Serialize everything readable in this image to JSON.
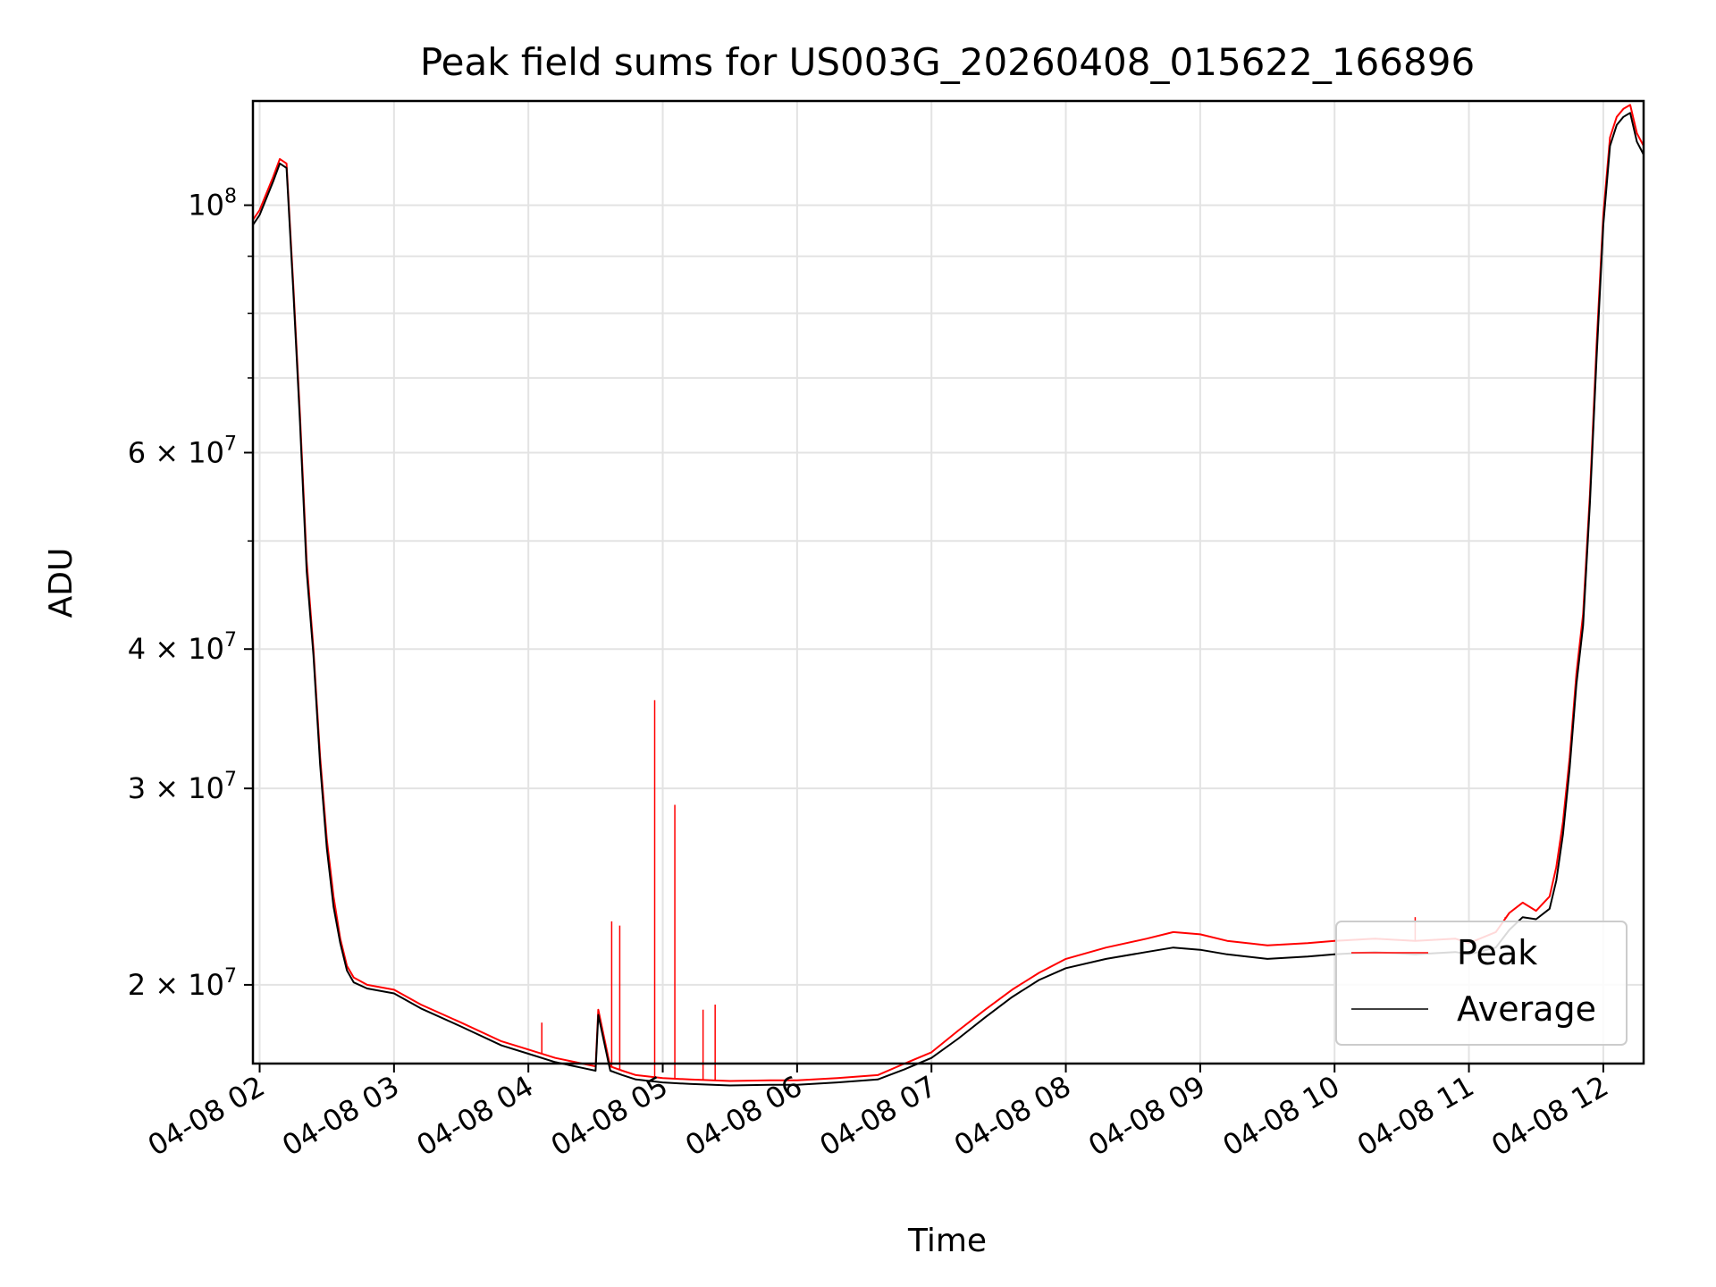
{
  "chart_data": {
    "type": "line",
    "title": "Peak field sums for US003G_20260408_015622_166896",
    "xlabel": "Time",
    "ylabel": "ADU",
    "yscale": "log",
    "grid": true,
    "legend_position": "lower-right",
    "x_range_hours": [
      1.95,
      12.3
    ],
    "ylim": [
      17000000,
      124000000
    ],
    "x_ticks": [
      {
        "hour": 2,
        "label": "04-08 02"
      },
      {
        "hour": 3,
        "label": "04-08 03"
      },
      {
        "hour": 4,
        "label": "04-08 04"
      },
      {
        "hour": 5,
        "label": "04-08 05"
      },
      {
        "hour": 6,
        "label": "04-08 06"
      },
      {
        "hour": 7,
        "label": "04-08 07"
      },
      {
        "hour": 8,
        "label": "04-08 08"
      },
      {
        "hour": 9,
        "label": "04-08 09"
      },
      {
        "hour": 10,
        "label": "04-08 10"
      },
      {
        "hour": 11,
        "label": "04-08 11"
      },
      {
        "hour": 12,
        "label": "04-08 12"
      }
    ],
    "y_ticks": [
      {
        "value": 20000000,
        "mantissa": "2",
        "exponent": "7"
      },
      {
        "value": 30000000,
        "mantissa": "3",
        "exponent": "7"
      },
      {
        "value": 40000000,
        "mantissa": "4",
        "exponent": "7"
      },
      {
        "value": 60000000,
        "mantissa": "6",
        "exponent": "7"
      },
      {
        "value": 100000000,
        "mantissa": "",
        "exponent": "8"
      }
    ],
    "y_minor_ticks": [
      50000000,
      70000000,
      80000000,
      90000000
    ],
    "series": [
      {
        "name": "Peak",
        "color": "#ff0000",
        "x_hours": [
          1.95,
          2.0,
          2.1,
          2.15,
          2.2,
          2.25,
          2.3,
          2.35,
          2.4,
          2.45,
          2.5,
          2.55,
          2.6,
          2.65,
          2.7,
          2.8,
          3.0,
          3.2,
          3.5,
          3.8,
          4.0,
          4.2,
          4.4,
          4.5,
          4.52,
          4.6,
          4.61,
          4.7,
          4.8,
          5.0,
          5.2,
          5.5,
          5.8,
          6.0,
          6.3,
          6.6,
          6.8,
          7.0,
          7.2,
          7.4,
          7.6,
          7.8,
          8.0,
          8.3,
          8.6,
          8.8,
          9.0,
          9.2,
          9.5,
          9.8,
          10.0,
          10.3,
          10.6,
          10.9,
          11.0,
          11.2,
          11.3,
          11.4,
          11.5,
          11.6,
          11.65,
          11.7,
          11.75,
          11.8,
          11.85,
          11.9,
          11.95,
          12.0,
          12.05,
          12.1,
          12.15,
          12.2,
          12.25,
          12.3
        ],
        "values": [
          97000000,
          99000000,
          106000000,
          110000000,
          109000000,
          85000000,
          65000000,
          48000000,
          40000000,
          32000000,
          27000000,
          24000000,
          22000000,
          20800000,
          20300000,
          20000000,
          19800000,
          19200000,
          18500000,
          17800000,
          17500000,
          17200000,
          17000000,
          16900000,
          19000000,
          17100000,
          16900000,
          16750000,
          16600000,
          16500000,
          16450000,
          16400000,
          16420000,
          16420000,
          16500000,
          16600000,
          17000000,
          17400000,
          18200000,
          19000000,
          19800000,
          20500000,
          21100000,
          21600000,
          22000000,
          22300000,
          22200000,
          21900000,
          21700000,
          21800000,
          21900000,
          22000000,
          21900000,
          22000000,
          21800000,
          22300000,
          23200000,
          23700000,
          23300000,
          24000000,
          25500000,
          28000000,
          32000000,
          38000000,
          43000000,
          55000000,
          75000000,
          98000000,
          115000000,
          120000000,
          122000000,
          123000000,
          116000000,
          113000000
        ],
        "spikes": [
          {
            "hour": 4.1,
            "value": 18500000
          },
          {
            "hour": 4.62,
            "value": 22800000
          },
          {
            "hour": 4.68,
            "value": 22600000
          },
          {
            "hour": 4.94,
            "value": 36000000
          },
          {
            "hour": 5.09,
            "value": 29000000
          },
          {
            "hour": 5.3,
            "value": 19000000
          },
          {
            "hour": 5.39,
            "value": 19200000
          },
          {
            "hour": 10.6,
            "value": 23000000
          },
          {
            "hour": 11.27,
            "value": 23000000
          }
        ]
      },
      {
        "name": "Average",
        "color": "#000000",
        "x_hours": [
          1.95,
          2.0,
          2.1,
          2.15,
          2.2,
          2.25,
          2.3,
          2.35,
          2.4,
          2.45,
          2.5,
          2.55,
          2.6,
          2.65,
          2.7,
          2.8,
          3.0,
          3.2,
          3.5,
          3.8,
          4.0,
          4.2,
          4.4,
          4.5,
          4.52,
          4.6,
          4.61,
          4.7,
          4.8,
          5.0,
          5.2,
          5.5,
          5.8,
          6.0,
          6.3,
          6.6,
          6.8,
          7.0,
          7.2,
          7.4,
          7.6,
          7.8,
          8.0,
          8.3,
          8.6,
          8.8,
          9.0,
          9.2,
          9.5,
          9.8,
          10.0,
          10.3,
          10.6,
          10.9,
          11.0,
          11.2,
          11.3,
          11.4,
          11.5,
          11.6,
          11.65,
          11.7,
          11.75,
          11.8,
          11.85,
          11.9,
          11.95,
          12.0,
          12.05,
          12.1,
          12.15,
          12.2,
          12.25,
          12.3
        ],
        "values": [
          96000000,
          98000000,
          105000000,
          109000000,
          108000000,
          84000000,
          64000000,
          47000000,
          39500000,
          31500000,
          26500000,
          23500000,
          21800000,
          20600000,
          20100000,
          19850000,
          19650000,
          19050000,
          18350000,
          17650000,
          17350000,
          17050000,
          16850000,
          16750000,
          18800000,
          16950000,
          16750000,
          16600000,
          16450000,
          16350000,
          16300000,
          16250000,
          16270000,
          16270000,
          16350000,
          16450000,
          16800000,
          17200000,
          17900000,
          18700000,
          19500000,
          20200000,
          20700000,
          21100000,
          21400000,
          21600000,
          21500000,
          21300000,
          21100000,
          21200000,
          21300000,
          21400000,
          21300000,
          21400000,
          21300000,
          21600000,
          22400000,
          23000000,
          22900000,
          23400000,
          24800000,
          27300000,
          31300000,
          37200000,
          42000000,
          54000000,
          73000000,
          96000000,
          113000000,
          118000000,
          120000000,
          121000000,
          114000000,
          111000000
        ]
      }
    ]
  }
}
